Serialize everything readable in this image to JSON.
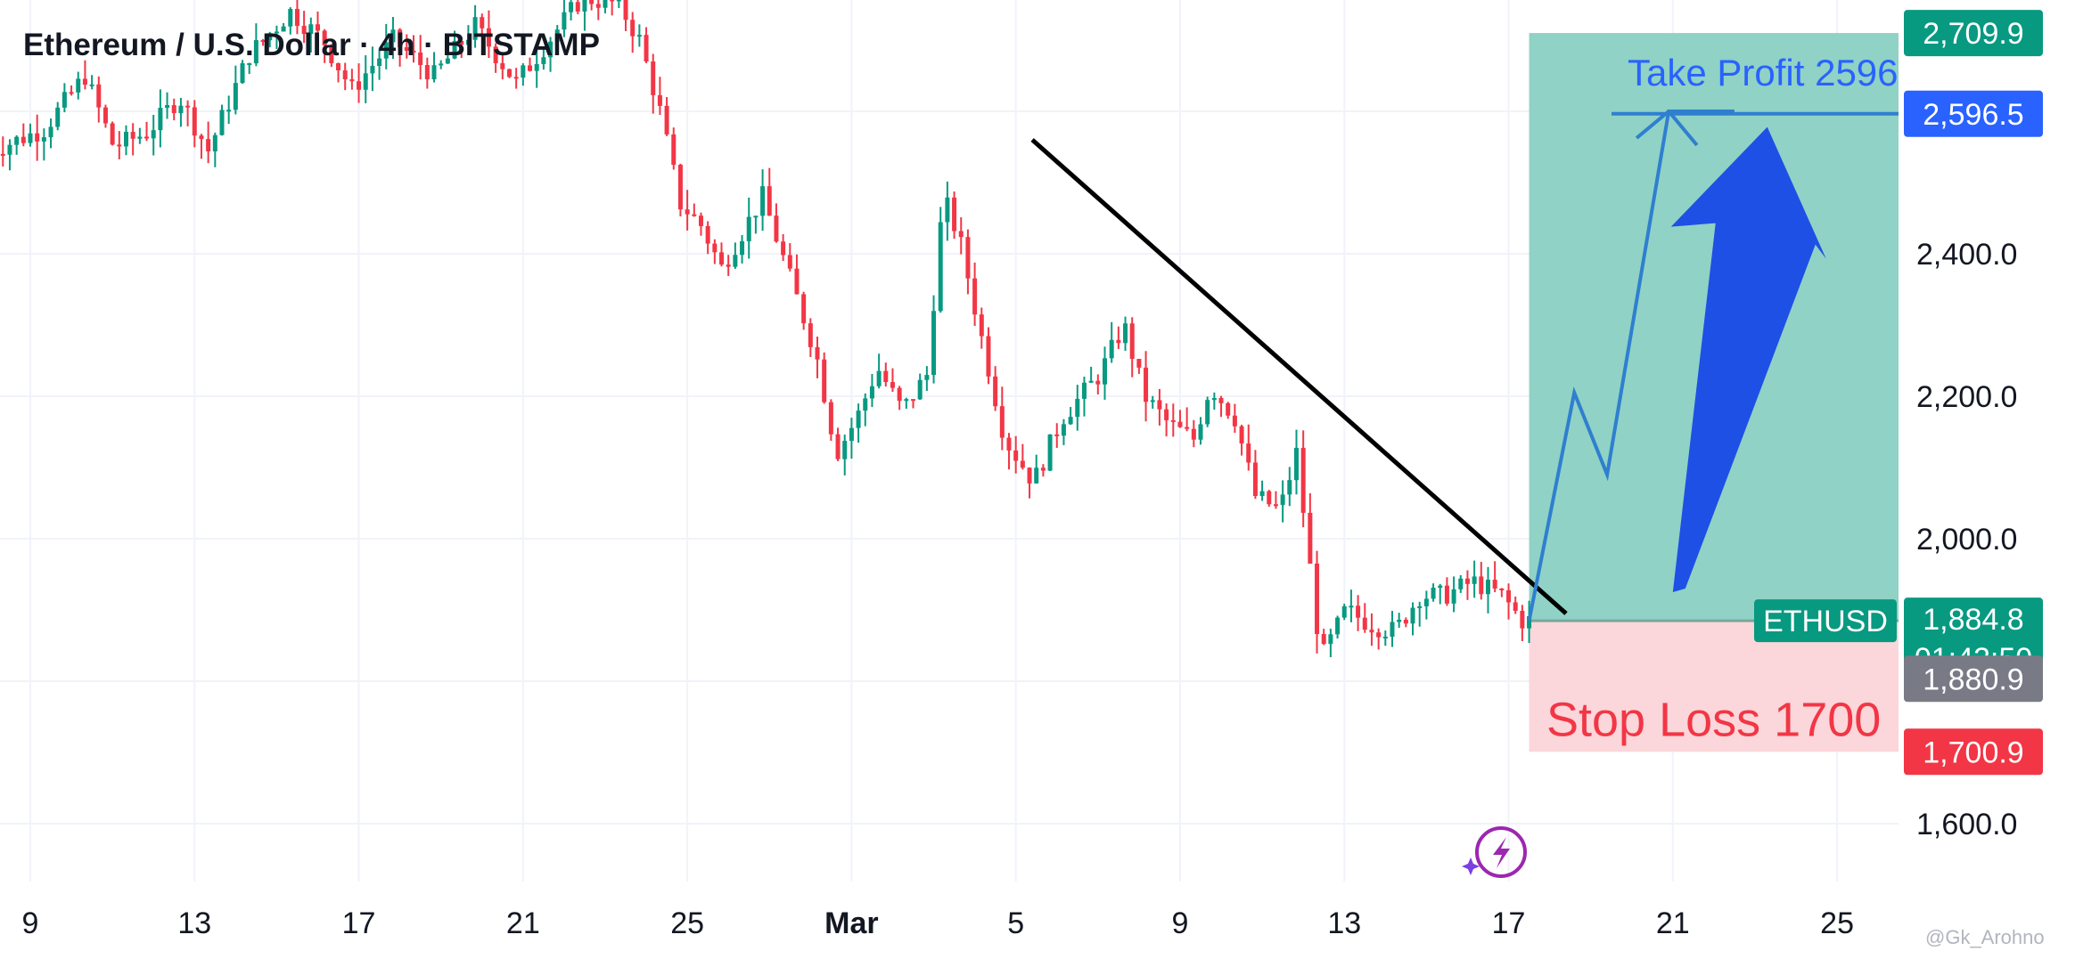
{
  "header": {
    "title": "Ethereum / U.S. Dollar · 4h · BITSTAMP"
  },
  "colors": {
    "up": "#089981",
    "down": "#f23645",
    "grid": "#f0f3fa",
    "profit_zone": "#8ad0c2",
    "loss_zone": "#fbd6da",
    "arrow_blue": "#1e50e6",
    "path_blue": "#2f7fd0"
  },
  "chart_data": {
    "type": "candlestick",
    "title": "Ethereum / U.S. Dollar · 4h · BITSTAMP",
    "symbol": "ETHUSD",
    "timeframe": "4h",
    "exchange": "BITSTAMP",
    "xlabel": "",
    "ylabel": "",
    "ylim": [
      1540,
      2760
    ],
    "price_ticks": [
      "1,600.0",
      "2,000.0",
      "2,200.0",
      "2,400.0"
    ],
    "date_ticks": [
      {
        "label": "9",
        "day": 9,
        "bold": false
      },
      {
        "label": "13",
        "day": 13,
        "bold": false
      },
      {
        "label": "17",
        "day": 17,
        "bold": false
      },
      {
        "label": "21",
        "day": 21,
        "bold": false
      },
      {
        "label": "25",
        "day": 25,
        "bold": false
      },
      {
        "label": "Mar",
        "day": 29,
        "bold": true
      },
      {
        "label": "5",
        "day": 33,
        "bold": false
      },
      {
        "label": "9",
        "day": 37,
        "bold": false
      },
      {
        "label": "13",
        "day": 41,
        "bold": false
      },
      {
        "label": "17",
        "day": 45,
        "bold": false
      },
      {
        "label": "21",
        "day": 49,
        "bold": false
      },
      {
        "label": "25",
        "day": 53,
        "bold": false
      }
    ],
    "price_path": [
      [
        8.0,
        2540
      ],
      [
        9.5,
        2575
      ],
      [
        10.5,
        2650
      ],
      [
        11.2,
        2550
      ],
      [
        12.0,
        2570
      ],
      [
        12.8,
        2620
      ],
      [
        13.5,
        2545
      ],
      [
        14.5,
        2680
      ],
      [
        15.5,
        2740
      ],
      [
        16.3,
        2700
      ],
      [
        17.0,
        2630
      ],
      [
        18.0,
        2700
      ],
      [
        19.0,
        2650
      ],
      [
        20.0,
        2720
      ],
      [
        21.0,
        2640
      ],
      [
        21.8,
        2700
      ],
      [
        22.6,
        2760
      ],
      [
        23.5,
        2750
      ],
      [
        24.0,
        2700
      ],
      [
        24.5,
        2600
      ],
      [
        25.0,
        2470
      ],
      [
        25.5,
        2440
      ],
      [
        26.0,
        2380
      ],
      [
        27.0,
        2480
      ],
      [
        27.7,
        2360
      ],
      [
        28.3,
        2260
      ],
      [
        28.8,
        2120
      ],
      [
        29.3,
        2170
      ],
      [
        29.8,
        2240
      ],
      [
        30.4,
        2180
      ],
      [
        31.0,
        2230
      ],
      [
        31.4,
        2480
      ],
      [
        31.8,
        2420
      ],
      [
        32.3,
        2290
      ],
      [
        32.9,
        2140
      ],
      [
        33.6,
        2080
      ],
      [
        34.3,
        2170
      ],
      [
        35.2,
        2230
      ],
      [
        35.8,
        2300
      ],
      [
        36.3,
        2200
      ],
      [
        36.9,
        2160
      ],
      [
        37.5,
        2140
      ],
      [
        37.9,
        2215
      ],
      [
        38.5,
        2170
      ],
      [
        39.0,
        2060
      ],
      [
        39.6,
        2040
      ],
      [
        40.0,
        2120
      ],
      [
        40.6,
        1830
      ],
      [
        41.2,
        1900
      ],
      [
        41.8,
        1880
      ],
      [
        42.4,
        1870
      ],
      [
        43.0,
        1920
      ],
      [
        43.6,
        1920
      ],
      [
        44.3,
        1940
      ],
      [
        45.0,
        1920
      ],
      [
        45.5,
        1885
      ]
    ],
    "trendline": {
      "from": [
        33.4,
        2560
      ],
      "to": [
        46.4,
        1895
      ]
    },
    "take_profit": {
      "price": 2596.5,
      "label": "Take Profit 2596",
      "tag": "2,596.5"
    },
    "stop_loss": {
      "price": 1700.9,
      "label": "Stop Loss 1700",
      "tag": "1,700.9"
    },
    "position_zone": {
      "from_day": 45.5,
      "to_day": 57.2,
      "entry": 1884.8,
      "top": 2709.9,
      "bottom": 1700.9
    },
    "projection_path": [
      [
        45.5,
        1885
      ],
      [
        46.6,
        2205
      ],
      [
        47.4,
        2090
      ],
      [
        48.9,
        2600
      ],
      [
        50.5,
        2600
      ]
    ],
    "projection_arrow_tip": [
      49.5,
      2555
    ],
    "big_arrow": {
      "base": [
        49.0,
        1925
      ],
      "tip": [
        51.3,
        2578
      ]
    },
    "price_tags": [
      {
        "label": "2,709.9",
        "price": 2709.9,
        "color": "#089981"
      },
      {
        "label": "2,596.5",
        "price": 2596.5,
        "color": "#2962ff"
      },
      {
        "label": "1,884.8",
        "price": 1884.8,
        "color": "#089981"
      },
      {
        "label": "1,880.9",
        "price": 1880.9,
        "color": "#787b86"
      },
      {
        "label": "1,700.9",
        "price": 1700.9,
        "color": "#f23645"
      }
    ],
    "last_price": {
      "label": "1,884.8",
      "countdown": "01:42:50",
      "symbol_tag": "ETHUSD"
    }
  },
  "watermark": "@Gk_Arohno"
}
